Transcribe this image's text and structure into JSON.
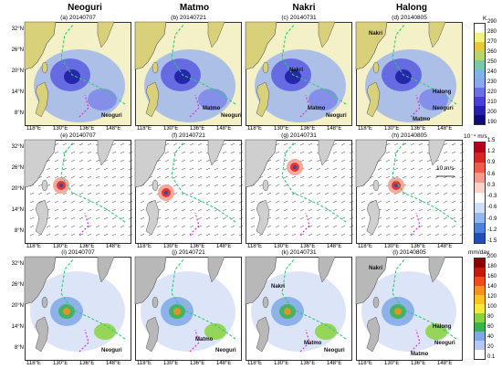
{
  "columns": [
    "Neoguri",
    "Matmo",
    "Nakri",
    "Halong"
  ],
  "rows": [
    {
      "panels": [
        "(a) 20140707",
        "(b) 20140721",
        "(c) 20140731",
        "(d) 20140805"
      ],
      "colorbar": {
        "unit": "K",
        "ticks": [
          "290",
          "280",
          "270",
          "260",
          "250",
          "240",
          "230",
          "220",
          "210",
          "200",
          "190"
        ],
        "colors": [
          "#ffffff",
          "#f2f27a",
          "#e8c73a",
          "#b7d56a",
          "#79c8a8",
          "#7fb4e8",
          "#8aa8ee",
          "#6c6ee6",
          "#4a3ed8",
          "#241fb0",
          "#0e0a78"
        ]
      }
    },
    {
      "panels": [
        "(e) 20140707",
        "(f) 20140721",
        "(g) 20140731",
        "(h) 20140805"
      ],
      "colorbar": {
        "unit": "10⁻⁴ m/s",
        "ticks": [
          "1.5",
          "1.2",
          "0.9",
          "0.6",
          "0.3",
          "-0.3",
          "-0.6",
          "-0.9",
          "-1.2",
          "-1.5"
        ],
        "colors": [
          "#b2001a",
          "#d72424",
          "#ef5a4a",
          "#f59a8c",
          "#fbd2ca",
          "#ffffff",
          "#cfe0f6",
          "#93b8ea",
          "#4e82d8",
          "#1f4eb6"
        ]
      },
      "wind_reference": "10 m/s"
    },
    {
      "panels": [
        "(i) 20140707",
        "(j) 20140721",
        "(k) 20140731",
        "(l) 20140805"
      ],
      "colorbar": {
        "unit": "mm/day",
        "ticks": [
          "200",
          "180",
          "160",
          "140",
          "120",
          "100",
          "80",
          "60",
          "40",
          "20",
          "0.1"
        ],
        "colors": [
          "#8a0000",
          "#c41a0c",
          "#f04a1e",
          "#f6921e",
          "#fbc31e",
          "#f5ea3a",
          "#88d23e",
          "#38b24a",
          "#7fa8e6",
          "#b6c8f2",
          "#ffffff"
        ]
      }
    }
  ],
  "lat_ticks": [
    "32°N",
    "26°N",
    "20°N",
    "14°N",
    "8°N"
  ],
  "lon_ticks": [
    "118°E",
    "124°E",
    "130°E",
    "136°E",
    "142°E",
    "148°E"
  ],
  "storm_labels": [
    {
      "panel": 0,
      "text": "Neoguri"
    },
    {
      "panel": 1,
      "text": "Matmo"
    },
    {
      "panel": 1,
      "text": "Neoguri"
    },
    {
      "panel": 2,
      "text": "Nakri"
    },
    {
      "panel": 2,
      "text": "Matmo"
    },
    {
      "panel": 2,
      "text": "Neoguri"
    },
    {
      "panel": 3,
      "text": "Nakri"
    },
    {
      "panel": 3,
      "text": "Matmo"
    },
    {
      "panel": 3,
      "text": "Neoguri"
    },
    {
      "panel": 3,
      "text": "Halong"
    },
    {
      "panel": 8,
      "text": "Neoguri"
    },
    {
      "panel": 9,
      "text": "Matmo"
    },
    {
      "panel": 9,
      "text": "Neoguri"
    },
    {
      "panel": 10,
      "text": "Nakri"
    },
    {
      "panel": 10,
      "text": "Matmo"
    },
    {
      "panel": 10,
      "text": "Neoguri"
    },
    {
      "panel": 11,
      "text": "Nakri"
    },
    {
      "panel": 11,
      "text": "Halong"
    },
    {
      "panel": 11,
      "text": "Matmo"
    },
    {
      "panel": 11,
      "text": "Neoguri"
    }
  ],
  "track_colors": {
    "past": "#2ecc71",
    "future": "#e020d0",
    "coast": "#2a7fd0"
  }
}
